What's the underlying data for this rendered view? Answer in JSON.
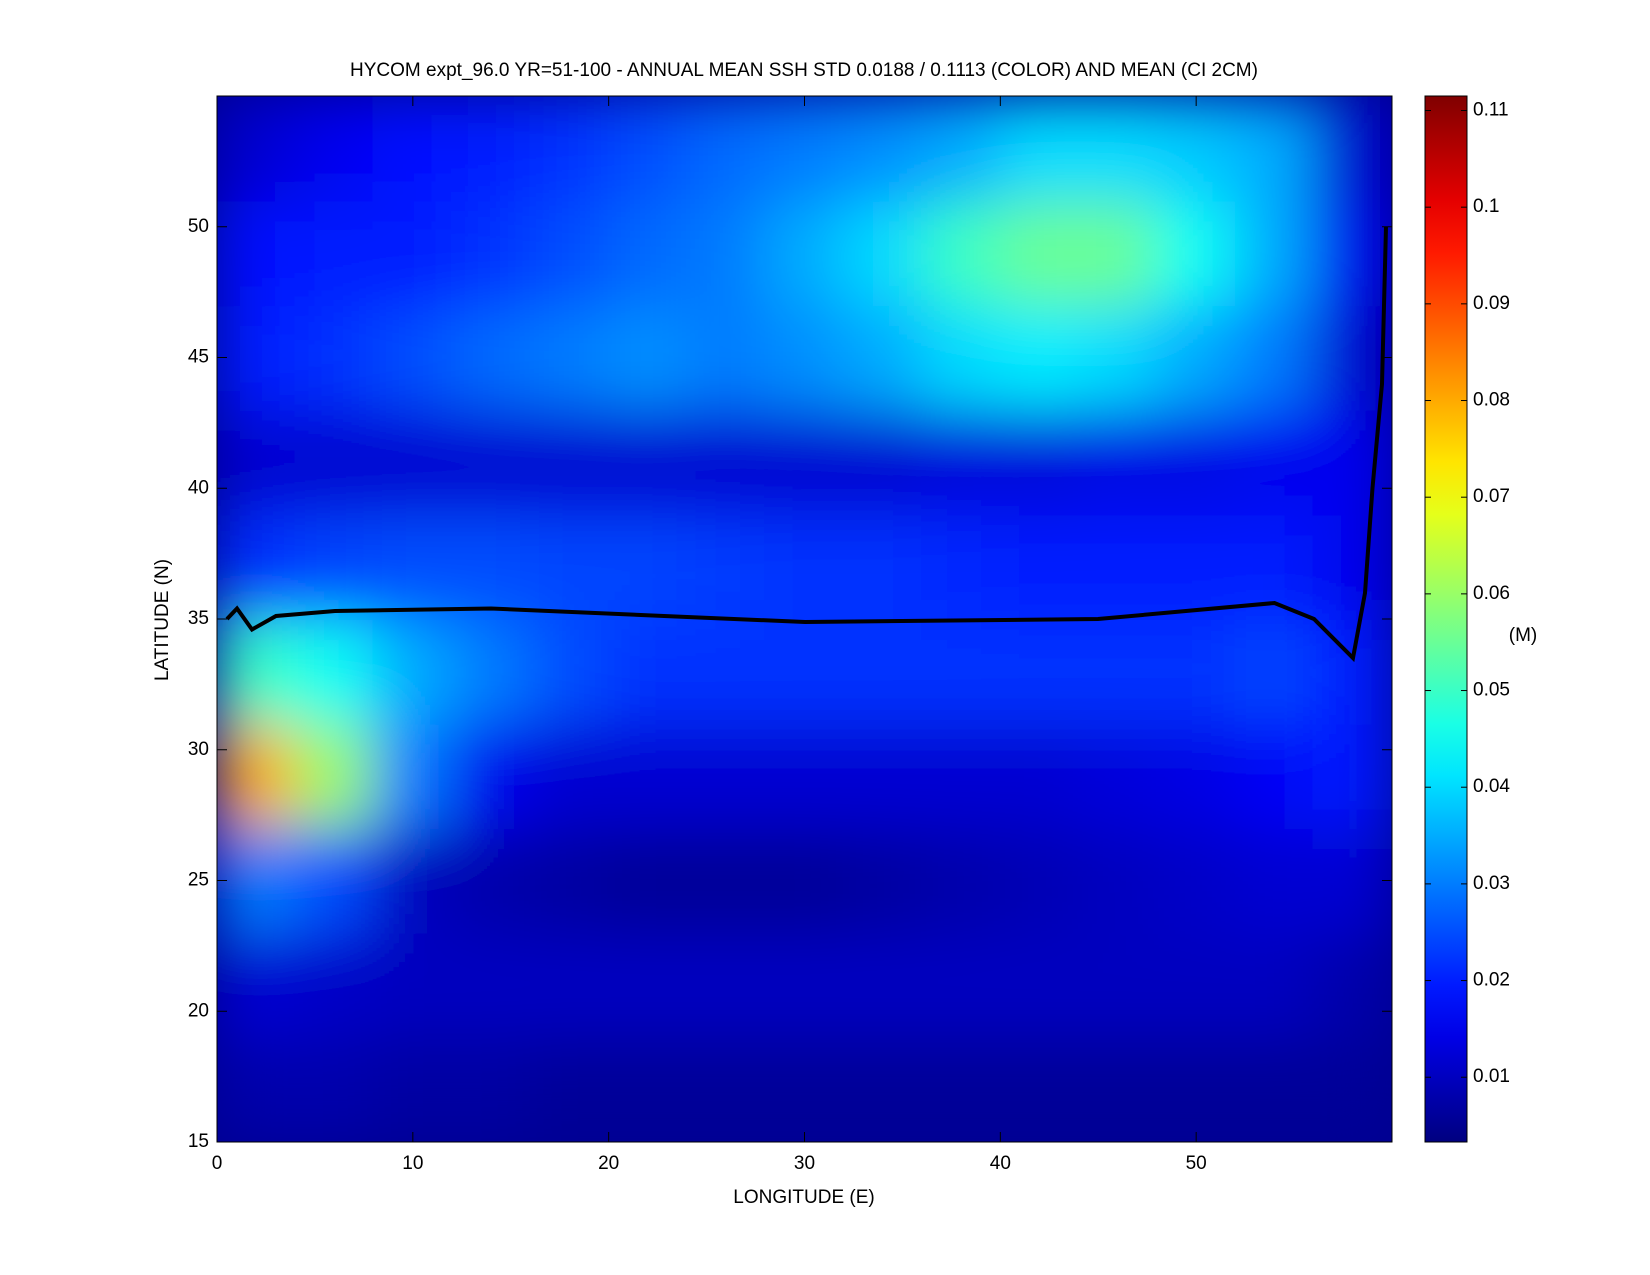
{
  "chart_data": {
    "type": "heatmap",
    "title": "HYCOM expt_96.0 YR=51-100 - ANNUAL MEAN SSH STD 0.0188 / 0.1113 (COLOR) AND MEAN (CI 2CM)",
    "x_label": "LONGITUDE (E)",
    "y_label": "LATITUDE (N)",
    "colorbar_label": "(M)",
    "x": [
      2,
      6,
      10,
      14,
      18,
      22,
      26,
      30,
      34,
      38,
      42,
      46,
      50,
      54,
      58
    ],
    "y": [
      17,
      21,
      25,
      29,
      33,
      37,
      41,
      45,
      49,
      53
    ],
    "z": [
      [
        0.008,
        0.008,
        0.007,
        0.007,
        0.006,
        0.006,
        0.006,
        0.006,
        0.006,
        0.006,
        0.006,
        0.006,
        0.006,
        0.006,
        0.006
      ],
      [
        0.012,
        0.011,
        0.01,
        0.01,
        0.01,
        0.01,
        0.01,
        0.01,
        0.01,
        0.01,
        0.01,
        0.01,
        0.01,
        0.01,
        0.008
      ],
      [
        0.03,
        0.025,
        0.01,
        0.008,
        0.007,
        0.006,
        0.006,
        0.006,
        0.007,
        0.008,
        0.009,
        0.01,
        0.011,
        0.012,
        0.012
      ],
      [
        0.08,
        0.06,
        0.03,
        0.015,
        0.012,
        0.012,
        0.012,
        0.012,
        0.012,
        0.012,
        0.012,
        0.013,
        0.014,
        0.016,
        0.02
      ],
      [
        0.05,
        0.045,
        0.035,
        0.03,
        0.025,
        0.022,
        0.022,
        0.022,
        0.022,
        0.022,
        0.022,
        0.022,
        0.022,
        0.024,
        0.02
      ],
      [
        0.022,
        0.024,
        0.025,
        0.025,
        0.024,
        0.024,
        0.023,
        0.022,
        0.022,
        0.021,
        0.02,
        0.02,
        0.02,
        0.02,
        0.015
      ],
      [
        0.012,
        0.012,
        0.012,
        0.012,
        0.012,
        0.012,
        0.012,
        0.012,
        0.012,
        0.013,
        0.013,
        0.014,
        0.014,
        0.015,
        0.015
      ],
      [
        0.02,
        0.022,
        0.025,
        0.028,
        0.03,
        0.032,
        0.03,
        0.032,
        0.035,
        0.04,
        0.042,
        0.04,
        0.035,
        0.03,
        0.012
      ],
      [
        0.018,
        0.02,
        0.02,
        0.022,
        0.025,
        0.028,
        0.03,
        0.035,
        0.04,
        0.05,
        0.055,
        0.055,
        0.045,
        0.035,
        0.015
      ],
      [
        0.012,
        0.015,
        0.018,
        0.02,
        0.022,
        0.025,
        0.028,
        0.03,
        0.032,
        0.035,
        0.04,
        0.04,
        0.038,
        0.035,
        0.012
      ]
    ],
    "xlim": [
      0,
      60
    ],
    "xticks": [
      0,
      10,
      20,
      30,
      40,
      50
    ],
    "ylim": [
      15,
      55
    ],
    "yticks": [
      15,
      20,
      25,
      30,
      35,
      40,
      45,
      50
    ],
    "clim": [
      0.0033,
      0.1115
    ],
    "cticks": [
      0.01,
      0.02,
      0.03,
      0.04,
      0.05,
      0.06,
      0.07,
      0.08,
      0.09,
      0.1,
      0.11
    ],
    "colormap": "jet"
  }
}
